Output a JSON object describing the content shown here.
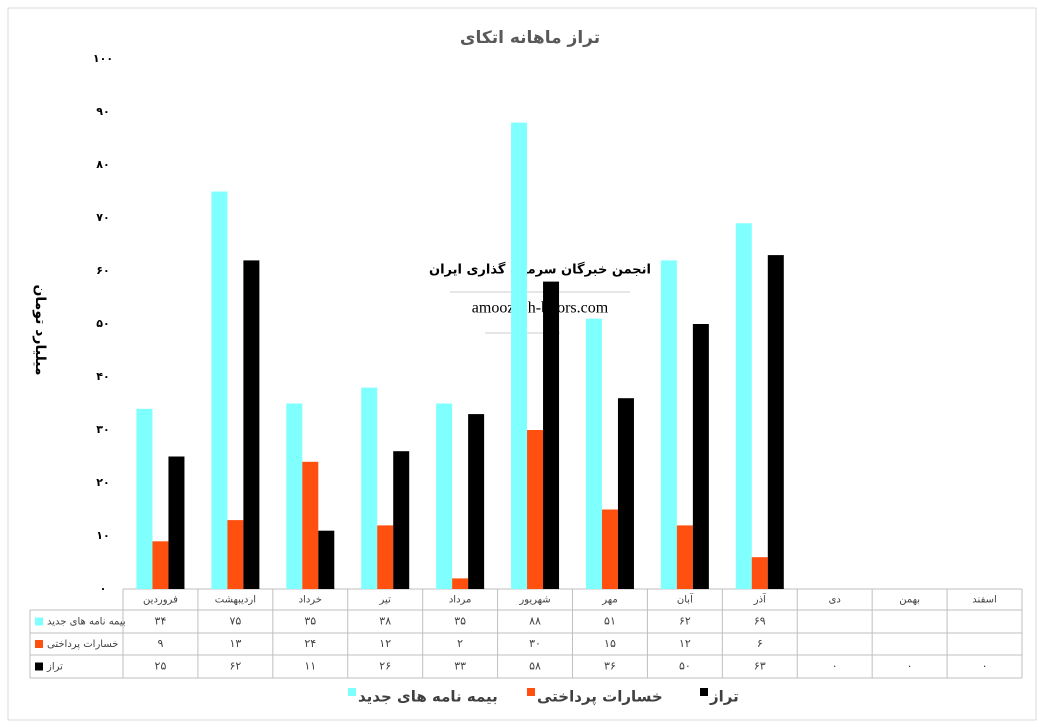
{
  "chart_data": {
    "type": "bar",
    "title": "تراز ماهانه اتکای",
    "y_label": "میلیارد تومان",
    "annotations": [
      "انجمن خبرگان سرمایه گذاری ایران",
      "amoozesh-boors.com"
    ],
    "categories": [
      "فروردین",
      "اردیبهشت",
      "خرداد",
      "تیر",
      "مرداد",
      "شهریور",
      "مهر",
      "آبان",
      "آذر",
      "دی",
      "بهمن",
      "اسفند"
    ],
    "series": [
      {
        "name": "بیمه نامه های جدید",
        "color": "#80ffff",
        "values": [
          34,
          75,
          35,
          38,
          35,
          88,
          51,
          62,
          69,
          null,
          null,
          null
        ],
        "value_labels": [
          "۳۴",
          "۷۵",
          "۳۵",
          "۳۸",
          "۳۵",
          "۸۸",
          "۵۱",
          "۶۲",
          "۶۹",
          null,
          null,
          null
        ]
      },
      {
        "name": "خسارات پرداختی",
        "color": "#ff5010",
        "values": [
          9,
          13,
          24,
          12,
          2,
          30,
          15,
          12,
          6,
          null,
          null,
          null
        ],
        "value_labels": [
          "۹",
          "۱۳",
          "۲۴",
          "۱۲",
          "۲",
          "۳۰",
          "۱۵",
          "۱۲",
          "۶",
          null,
          null,
          null
        ]
      },
      {
        "name": "تراز",
        "color": "#000000",
        "values": [
          25,
          62,
          11,
          26,
          33,
          58,
          36,
          50,
          63,
          0,
          0,
          0
        ],
        "value_labels": [
          "۲۵",
          "۶۲",
          "۱۱",
          "۲۶",
          "۳۳",
          "۵۸",
          "۳۶",
          "۵۰",
          "۶۳",
          "۰",
          "۰",
          "۰"
        ]
      }
    ],
    "ylim": [
      0,
      100
    ],
    "yticks": [
      {
        "value": 0,
        "label": "۰"
      },
      {
        "value": 10,
        "label": "۱۰"
      },
      {
        "value": 20,
        "label": "۲۰"
      },
      {
        "value": 30,
        "label": "۳۰"
      },
      {
        "value": 40,
        "label": "۴۰"
      },
      {
        "value": 50,
        "label": "۵۰"
      },
      {
        "value": 60,
        "label": "۶۰"
      },
      {
        "value": 70,
        "label": "۷۰"
      },
      {
        "value": 80,
        "label": "۸۰"
      },
      {
        "value": 90,
        "label": "۹۰"
      },
      {
        "value": 100,
        "label": "۱۰۰"
      }
    ],
    "grid": false,
    "legend": "bottom"
  }
}
